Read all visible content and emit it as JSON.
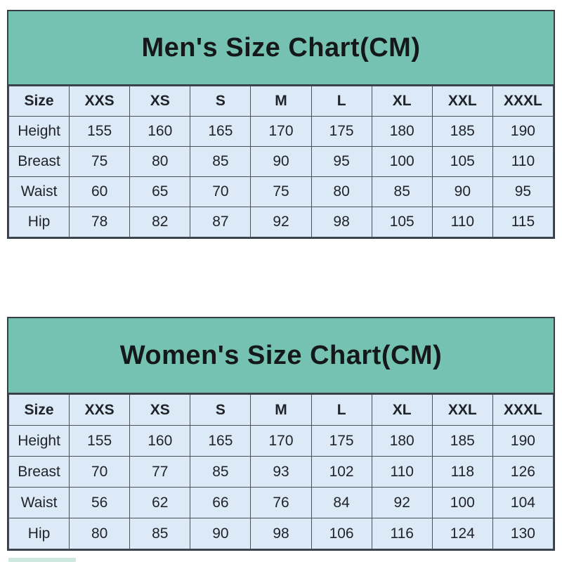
{
  "colors": {
    "page_bg": "#ffffff",
    "band_teal": "#76c2b2",
    "cell_blue": "#dce9f6",
    "border_dark": "#363d44",
    "border_mid": "#49505a",
    "title_text": "#15181a",
    "cell_text": "#20242a",
    "fragment_teal": "#cfe8e1"
  },
  "chart_data": [
    {
      "type": "table",
      "title": "Men's Size Chart(CM)",
      "units": "CM",
      "columns": [
        "Size",
        "XXS",
        "XS",
        "S",
        "M",
        "L",
        "XL",
        "XXL",
        "XXXL"
      ],
      "rows": [
        {
          "label": "Height",
          "values": [
            155,
            160,
            165,
            170,
            175,
            180,
            185,
            190
          ]
        },
        {
          "label": "Breast",
          "values": [
            75,
            80,
            85,
            90,
            95,
            100,
            105,
            110
          ]
        },
        {
          "label": "Waist",
          "values": [
            60,
            65,
            70,
            75,
            80,
            85,
            90,
            95
          ]
        },
        {
          "label": "Hip",
          "values": [
            78,
            82,
            87,
            92,
            98,
            105,
            110,
            115
          ]
        }
      ]
    },
    {
      "type": "table",
      "title": "Women's Size Chart(CM)",
      "units": "CM",
      "columns": [
        "Size",
        "XXS",
        "XS",
        "S",
        "M",
        "L",
        "XL",
        "XXL",
        "XXXL"
      ],
      "rows": [
        {
          "label": "Height",
          "values": [
            155,
            160,
            165,
            170,
            175,
            180,
            185,
            190
          ]
        },
        {
          "label": "Breast",
          "values": [
            70,
            77,
            85,
            93,
            102,
            110,
            118,
            126
          ]
        },
        {
          "label": "Waist",
          "values": [
            56,
            62,
            66,
            76,
            84,
            92,
            100,
            104
          ]
        },
        {
          "label": "Hip",
          "values": [
            80,
            85,
            90,
            98,
            106,
            116,
            124,
            130
          ]
        }
      ]
    }
  ]
}
